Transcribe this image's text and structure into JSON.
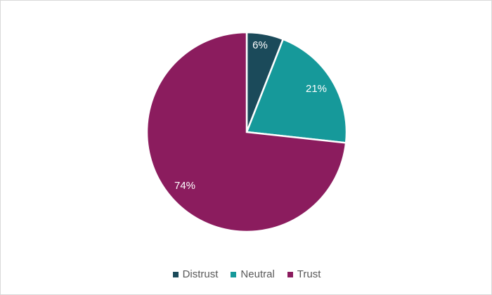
{
  "chart_data": {
    "type": "pie",
    "title": "",
    "categories": [
      "Distrust",
      "Neutral",
      "Trust"
    ],
    "values": [
      6,
      21,
      74
    ],
    "labels": [
      "6%",
      "21%",
      "74%"
    ],
    "colors": [
      "#1b4a5a",
      "#16999a",
      "#8b1c5e"
    ],
    "legend_position": "bottom"
  },
  "legend": {
    "items": [
      {
        "label": "Distrust",
        "color": "#1b4a5a"
      },
      {
        "label": "Neutral",
        "color": "#16999a"
      },
      {
        "label": "Trust",
        "color": "#8b1c5e"
      }
    ]
  }
}
